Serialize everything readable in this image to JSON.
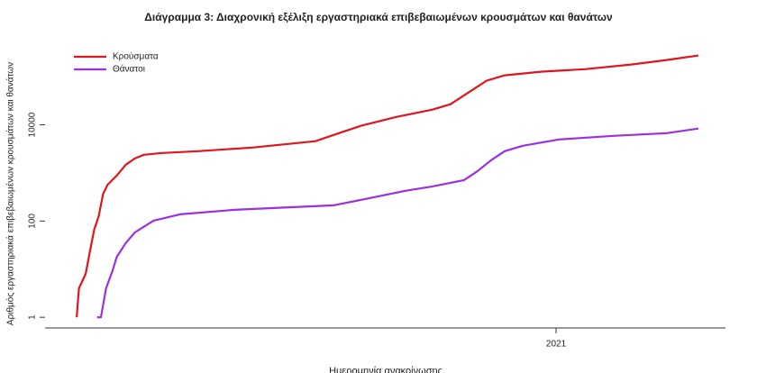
{
  "chart_data": {
    "type": "line",
    "title": "Διάγραμμα 3: Διαχρονική εξέλιξη εργαστηριακά επιβεβαιωμένων κρουσμάτων και θανάτων",
    "x_label": "Ημερομηνία ανακοίνωσης",
    "y_label": "Αριθμός εργαστηριακά επιβεβαιωμένων κρουσμάτων και θανάτων",
    "log_y": true,
    "xlim": [
      2020.095,
      2021.3
    ],
    "xticks": [
      2021
    ],
    "ylim": [
      0.6,
      700000
    ],
    "yticks": [
      1,
      100,
      10000
    ],
    "legend": "top-left",
    "series": [
      {
        "name": "Κρούσματα",
        "color": "#e0161d",
        "x": [
          2020.151,
          2020.155,
          2020.167,
          2020.174,
          2020.182,
          2020.19,
          2020.198,
          2020.206,
          2020.222,
          2020.238,
          2020.254,
          2020.27,
          2020.302,
          2020.366,
          2020.462,
          2020.574,
          2020.606,
          2020.654,
          2020.717,
          2020.781,
          2020.813,
          2020.845,
          2020.877,
          2020.909,
          2020.973,
          2021.053,
          2021.133,
          2021.196,
          2021.252
        ],
        "values": [
          1,
          4,
          8,
          22,
          66,
          126,
          372,
          573,
          883,
          1480,
          2000,
          2380,
          2600,
          2830,
          3370,
          4560,
          6160,
          9500,
          14600,
          20700,
          26800,
          47000,
          82400,
          107000,
          127000,
          144000,
          179000,
          222000,
          276000
        ]
      },
      {
        "name": "Θάνατοι",
        "color": "#9b30e0",
        "x": [
          2020.187,
          2020.194,
          2020.203,
          2020.214,
          2020.222,
          2020.238,
          2020.254,
          2020.287,
          2020.334,
          2020.43,
          2020.606,
          2020.654,
          2020.733,
          2020.781,
          2020.837,
          2020.861,
          2020.885,
          2020.909,
          2020.941,
          2021.005,
          2021.101,
          2021.196,
          2021.252
        ],
        "values": [
          1,
          1,
          4,
          9,
          18,
          35,
          58,
          102,
          138,
          171,
          212,
          275,
          424,
          525,
          711,
          1090,
          1840,
          2830,
          3670,
          4970,
          5900,
          6720,
          8340
        ]
      }
    ]
  }
}
